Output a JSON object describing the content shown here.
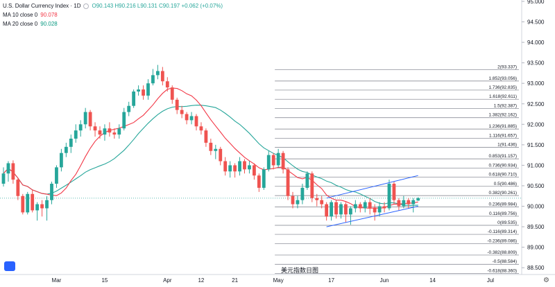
{
  "legend": {
    "symbol_title": "U.S. Dollar Currency Index · 1D",
    "ohlc": "O90.143 H90.216 L90.131 C90.197 +0.062 (+0.07%)",
    "ma10_label": "MA 10 close 0",
    "ma10_value": "90.078",
    "ma20_label": "MA 20 close 0",
    "ma20_value": "90.028"
  },
  "watermark": "美元指数日图",
  "colors": {
    "up": "#26a69a",
    "down": "#ef5350",
    "ma10": "#f23645",
    "ma20": "#26a69a"
  },
  "chart_data": {
    "type": "candlestick",
    "y_range": [
      88.3,
      95.0
    ],
    "y_ticks": [
      "95.000",
      "94.500",
      "94.000",
      "93.500",
      "93.000",
      "92.500",
      "92.000",
      "91.500",
      "91.000",
      "90.500",
      "90.000",
      "89.500",
      "89.000",
      "88.500"
    ],
    "x_labels": [
      {
        "label": "Mar",
        "idx": 11
      },
      {
        "label": "15",
        "idx": 21
      },
      {
        "label": "Apr",
        "idx": 34
      },
      {
        "label": "12",
        "idx": 41
      },
      {
        "label": "21",
        "idx": 48
      },
      {
        "label": "May",
        "idx": 57
      },
      {
        "label": "17",
        "idx": 68
      },
      {
        "label": "Jun",
        "idx": 79
      },
      {
        "label": "14",
        "idx": 89
      },
      {
        "label": "Jul",
        "idx": 101
      }
    ],
    "candles": [
      [
        90.55,
        90.8,
        90.48,
        90.95
      ],
      [
        90.8,
        91.05,
        90.6,
        91.1
      ],
      [
        91.05,
        90.65,
        90.55,
        91.12
      ],
      [
        90.65,
        90.25,
        90.15,
        90.7
      ],
      [
        90.25,
        89.85,
        89.8,
        90.3
      ],
      [
        89.85,
        90.3,
        89.8,
        90.35
      ],
      [
        90.3,
        89.9,
        89.85,
        90.4
      ],
      [
        89.9,
        90.05,
        89.65,
        90.1
      ],
      [
        90.05,
        89.95,
        89.75,
        90.15
      ],
      [
        89.95,
        90.15,
        89.65,
        90.25
      ],
      [
        90.15,
        90.55,
        90.05,
        90.6
      ],
      [
        90.55,
        90.95,
        90.45,
        91.0
      ],
      [
        90.95,
        91.3,
        90.85,
        91.4
      ],
      [
        91.3,
        91.45,
        91.2,
        91.55
      ],
      [
        91.45,
        91.65,
        91.3,
        91.75
      ],
      [
        91.65,
        91.85,
        91.55,
        92.0
      ],
      [
        91.85,
        92.0,
        91.7,
        92.1
      ],
      [
        92.0,
        92.3,
        91.9,
        92.4
      ],
      [
        92.3,
        91.95,
        91.85,
        92.35
      ],
      [
        91.95,
        91.85,
        91.7,
        92.05
      ],
      [
        91.85,
        91.75,
        91.65,
        91.95
      ],
      [
        91.75,
        91.9,
        91.6,
        92.0
      ],
      [
        91.9,
        91.8,
        91.7,
        92.05
      ],
      [
        91.8,
        91.75,
        91.65,
        91.9
      ],
      [
        91.75,
        91.9,
        91.65,
        92.0
      ],
      [
        91.9,
        92.3,
        91.85,
        92.4
      ],
      [
        92.3,
        92.45,
        92.2,
        92.55
      ],
      [
        92.45,
        92.8,
        92.4,
        92.85
      ],
      [
        92.8,
        92.85,
        92.7,
        92.95
      ],
      [
        92.85,
        92.7,
        92.6,
        92.95
      ],
      [
        92.7,
        93.0,
        92.6,
        93.1
      ],
      [
        93.0,
        93.2,
        92.95,
        93.35
      ],
      [
        93.2,
        93.3,
        93.1,
        93.45
      ],
      [
        93.3,
        93.05,
        92.95,
        93.4
      ],
      [
        93.05,
        92.9,
        92.8,
        93.15
      ],
      [
        92.9,
        92.6,
        92.5,
        92.95
      ],
      [
        92.6,
        92.35,
        92.25,
        92.65
      ],
      [
        92.35,
        92.25,
        92.15,
        92.45
      ],
      [
        92.25,
        92.1,
        92.0,
        92.3
      ],
      [
        92.1,
        92.2,
        92.0,
        92.3
      ],
      [
        92.2,
        91.95,
        91.85,
        92.25
      ],
      [
        91.95,
        91.85,
        91.75,
        92.05
      ],
      [
        91.85,
        91.55,
        91.45,
        91.9
      ],
      [
        91.55,
        91.35,
        91.25,
        91.65
      ],
      [
        91.35,
        91.4,
        91.15,
        91.5
      ],
      [
        91.4,
        91.1,
        91.0,
        91.45
      ],
      [
        91.1,
        90.85,
        90.75,
        91.2
      ],
      [
        90.85,
        91.0,
        90.7,
        91.1
      ],
      [
        91.0,
        90.85,
        90.7,
        91.05
      ],
      [
        90.85,
        91.1,
        90.75,
        91.2
      ],
      [
        91.1,
        90.9,
        90.8,
        91.15
      ],
      [
        90.9,
        91.0,
        90.8,
        91.1
      ],
      [
        91.0,
        90.75,
        90.65,
        91.05
      ],
      [
        90.75,
        90.45,
        90.35,
        90.8
      ],
      [
        90.45,
        90.9,
        90.4,
        90.95
      ],
      [
        90.9,
        91.25,
        90.85,
        91.35
      ],
      [
        91.25,
        91.0,
        90.9,
        91.3
      ],
      [
        91.0,
        91.3,
        90.95,
        91.4
      ],
      [
        91.3,
        90.9,
        90.8,
        91.35
      ],
      [
        90.9,
        90.25,
        90.15,
        90.95
      ],
      [
        90.25,
        90.05,
        89.95,
        90.35
      ],
      [
        90.05,
        90.15,
        89.95,
        90.25
      ],
      [
        90.15,
        90.45,
        90.05,
        90.55
      ],
      [
        90.45,
        90.8,
        90.4,
        90.85
      ],
      [
        90.8,
        90.2,
        90.1,
        90.85
      ],
      [
        90.2,
        90.15,
        90.0,
        90.3
      ],
      [
        90.15,
        90.05,
        89.95,
        90.25
      ],
      [
        90.05,
        89.75,
        89.65,
        90.1
      ],
      [
        89.75,
        90.1,
        89.65,
        90.15
      ],
      [
        90.1,
        89.8,
        89.7,
        90.15
      ],
      [
        89.8,
        90.05,
        89.7,
        90.1
      ],
      [
        90.05,
        89.8,
        89.6,
        90.1
      ],
      [
        89.8,
        89.95,
        89.55,
        90.0
      ],
      [
        89.95,
        90.05,
        89.85,
        90.15
      ],
      [
        90.05,
        89.95,
        89.85,
        90.1
      ],
      [
        89.95,
        90.1,
        89.85,
        90.15
      ],
      [
        90.1,
        89.95,
        89.8,
        90.2
      ],
      [
        89.95,
        89.85,
        89.65,
        90.05
      ],
      [
        89.85,
        90.0,
        89.75,
        90.1
      ],
      [
        90.0,
        89.95,
        89.85,
        90.1
      ],
      [
        89.95,
        90.55,
        89.9,
        90.65
      ],
      [
        90.55,
        90.15,
        90.05,
        90.6
      ],
      [
        90.15,
        90.0,
        89.9,
        90.2
      ],
      [
        90.0,
        90.15,
        89.95,
        90.25
      ],
      [
        90.15,
        90.05,
        89.95,
        90.2
      ],
      [
        90.05,
        90.15,
        89.85,
        90.2
      ],
      [
        90.14,
        90.2,
        90.13,
        90.22
      ]
    ],
    "fib_levels": [
      {
        "label": "2(93.337)",
        "value": 93.337
      },
      {
        "label": "1.852(93.056)",
        "value": 93.056
      },
      {
        "label": "1.736(92.835)",
        "value": 92.835
      },
      {
        "label": "1.618(92.611)",
        "value": 92.611
      },
      {
        "label": "1.5(92.387)",
        "value": 92.387
      },
      {
        "label": "1.382(92.162)",
        "value": 92.162
      },
      {
        "label": "1.236(91.885)",
        "value": 91.885
      },
      {
        "label": "1.116(91.657)",
        "value": 91.657
      },
      {
        "label": "1(91.436)",
        "value": 91.436
      },
      {
        "label": "0.853(91.157)",
        "value": 91.157
      },
      {
        "label": "0.736(90.934)",
        "value": 90.934
      },
      {
        "label": "0.618(90.710)",
        "value": 90.71
      },
      {
        "label": "0.5(90.486)",
        "value": 90.486
      },
      {
        "label": "0.382(90.261)",
        "value": 90.261
      },
      {
        "label": "0.236(89.984)",
        "value": 89.984
      },
      {
        "label": "0.116(89.756)",
        "value": 89.756
      },
      {
        "label": "0(89.535)",
        "value": 89.535
      },
      {
        "label": "-0.116(89.314)",
        "value": 89.314
      },
      {
        "label": "-0.236(89.086)",
        "value": 89.086
      },
      {
        "label": "-0.382(88.809)",
        "value": 88.809
      },
      {
        "label": "-0.5(88.584)",
        "value": 88.584
      },
      {
        "label": "-0.618(88.360)",
        "value": 88.36
      }
    ],
    "fib_start_idx": 57,
    "channel": {
      "upper": [
        [
          67,
          90.2
        ],
        [
          86,
          90.75
        ]
      ],
      "lower": [
        [
          67,
          89.5
        ],
        [
          86,
          90.0
        ]
      ]
    },
    "current_price": 90.197
  }
}
